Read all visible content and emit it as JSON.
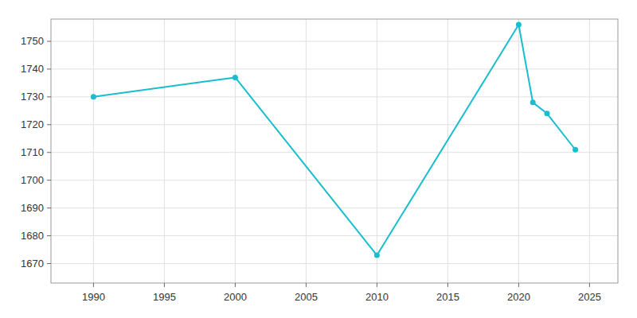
{
  "chart_data": {
    "type": "line",
    "x": [
      1990,
      2000,
      2010,
      2020,
      2021,
      2022,
      2024
    ],
    "values": [
      1730,
      1737,
      1673,
      1756,
      1728,
      1724,
      1711
    ],
    "color": "#17becf",
    "marker": "circle",
    "xlim": [
      1987,
      2027
    ],
    "ylim": [
      1663,
      1758
    ],
    "xticks": [
      1990,
      1995,
      2000,
      2005,
      2010,
      2015,
      2020,
      2025
    ],
    "yticks": [
      1670,
      1680,
      1690,
      1700,
      1710,
      1720,
      1730,
      1740,
      1750
    ],
    "grid": true
  }
}
